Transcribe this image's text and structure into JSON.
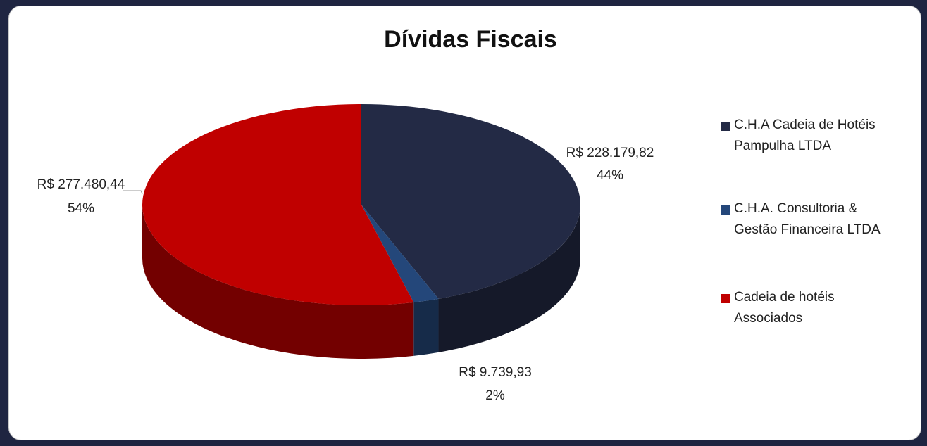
{
  "chart_data": {
    "type": "pie",
    "title": "Dívidas Fiscais",
    "categories": [
      "C.H.A Cadeia de Hotéis Pampulha LTDA",
      "C.H.A. Consultoria & Gestão Financeira LTDA",
      "Cadeia de hotéis Associados"
    ],
    "values": [
      228179.82,
      9739.93,
      277480.44
    ],
    "value_labels": [
      "R$ 228.179,82",
      "R$ 9.739,93",
      "R$ 277.480,44"
    ],
    "percent_labels": [
      "44%",
      "2%",
      "54%"
    ],
    "colors": [
      "#232a45",
      "#24477a",
      "#c00000"
    ],
    "legend": "right"
  }
}
